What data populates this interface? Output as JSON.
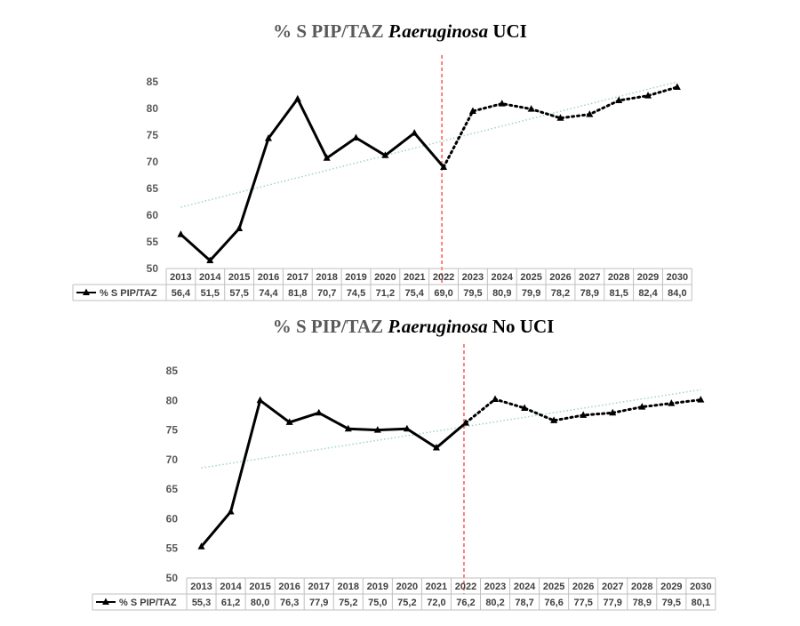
{
  "chart_data": [
    {
      "type": "line",
      "title": {
        "prefix": "% S PIP/TAZ ",
        "italic": "P.aeruginosa",
        "suffix": " UCI"
      },
      "categories": [
        "2013",
        "2014",
        "2015",
        "2016",
        "2017",
        "2018",
        "2019",
        "2020",
        "2021",
        "2022",
        "2023",
        "2024",
        "2025",
        "2026",
        "2027",
        "2028",
        "2029",
        "2030"
      ],
      "series": [
        {
          "name": "% S PIP/TAZ",
          "values": [
            56.4,
            51.5,
            57.5,
            74.4,
            81.8,
            70.7,
            74.5,
            71.2,
            75.4,
            69.0,
            79.5,
            80.9,
            79.9,
            78.2,
            78.9,
            81.5,
            82.4,
            84.0
          ],
          "labels": [
            "56,4",
            "51,5",
            "57,5",
            "74,4",
            "81,8",
            "70,7",
            "74,5",
            "71,2",
            "75,4",
            "69,0",
            "79,5",
            "80,9",
            "79,9",
            "78,2",
            "78,9",
            "81,5",
            "82,4",
            "84,0"
          ],
          "color": "#000000",
          "observed_until": "2022",
          "forecast_style": "dotted"
        }
      ],
      "trendline": {
        "color": "#9dd5c9",
        "style": "dotted",
        "y_start": 61.5,
        "y_end": 85.0
      },
      "divider": {
        "at": "2022",
        "color": "#ff0000",
        "style": "dashed"
      },
      "ylim": [
        50,
        85
      ],
      "yticks": [
        50,
        55,
        60,
        65,
        70,
        75,
        80,
        85
      ],
      "data_table": true
    },
    {
      "type": "line",
      "title": {
        "prefix": "% S PIP/TAZ ",
        "italic": "P.aeruginosa",
        "suffix": " No UCI"
      },
      "categories": [
        "2013",
        "2014",
        "2015",
        "2016",
        "2017",
        "2018",
        "2019",
        "2020",
        "2021",
        "2022",
        "2023",
        "2024",
        "2025",
        "2026",
        "2027",
        "2028",
        "2029",
        "2030"
      ],
      "series": [
        {
          "name": "% S PIP/TAZ",
          "values": [
            55.3,
            61.2,
            80.0,
            76.3,
            77.9,
            75.2,
            75.0,
            75.2,
            72.0,
            76.2,
            80.2,
            78.7,
            76.6,
            77.5,
            77.9,
            78.9,
            79.5,
            80.1
          ],
          "labels": [
            "55,3",
            "61,2",
            "80,0",
            "76,3",
            "77,9",
            "75,2",
            "75,0",
            "75,2",
            "72,0",
            "76,2",
            "80,2",
            "78,7",
            "76,6",
            "77,5",
            "77,9",
            "78,9",
            "79,5",
            "80,1"
          ],
          "color": "#000000",
          "observed_until": "2022",
          "forecast_style": "dotted"
        }
      ],
      "trendline": {
        "color": "#9dd5c9",
        "style": "dotted",
        "y_start": 68.6,
        "y_end": 81.8
      },
      "divider": {
        "at": "2022",
        "color": "#ff0000",
        "style": "dashed"
      },
      "ylim": [
        50,
        85
      ],
      "yticks": [
        50,
        55,
        60,
        65,
        70,
        75,
        80,
        85
      ],
      "data_table": true
    }
  ]
}
